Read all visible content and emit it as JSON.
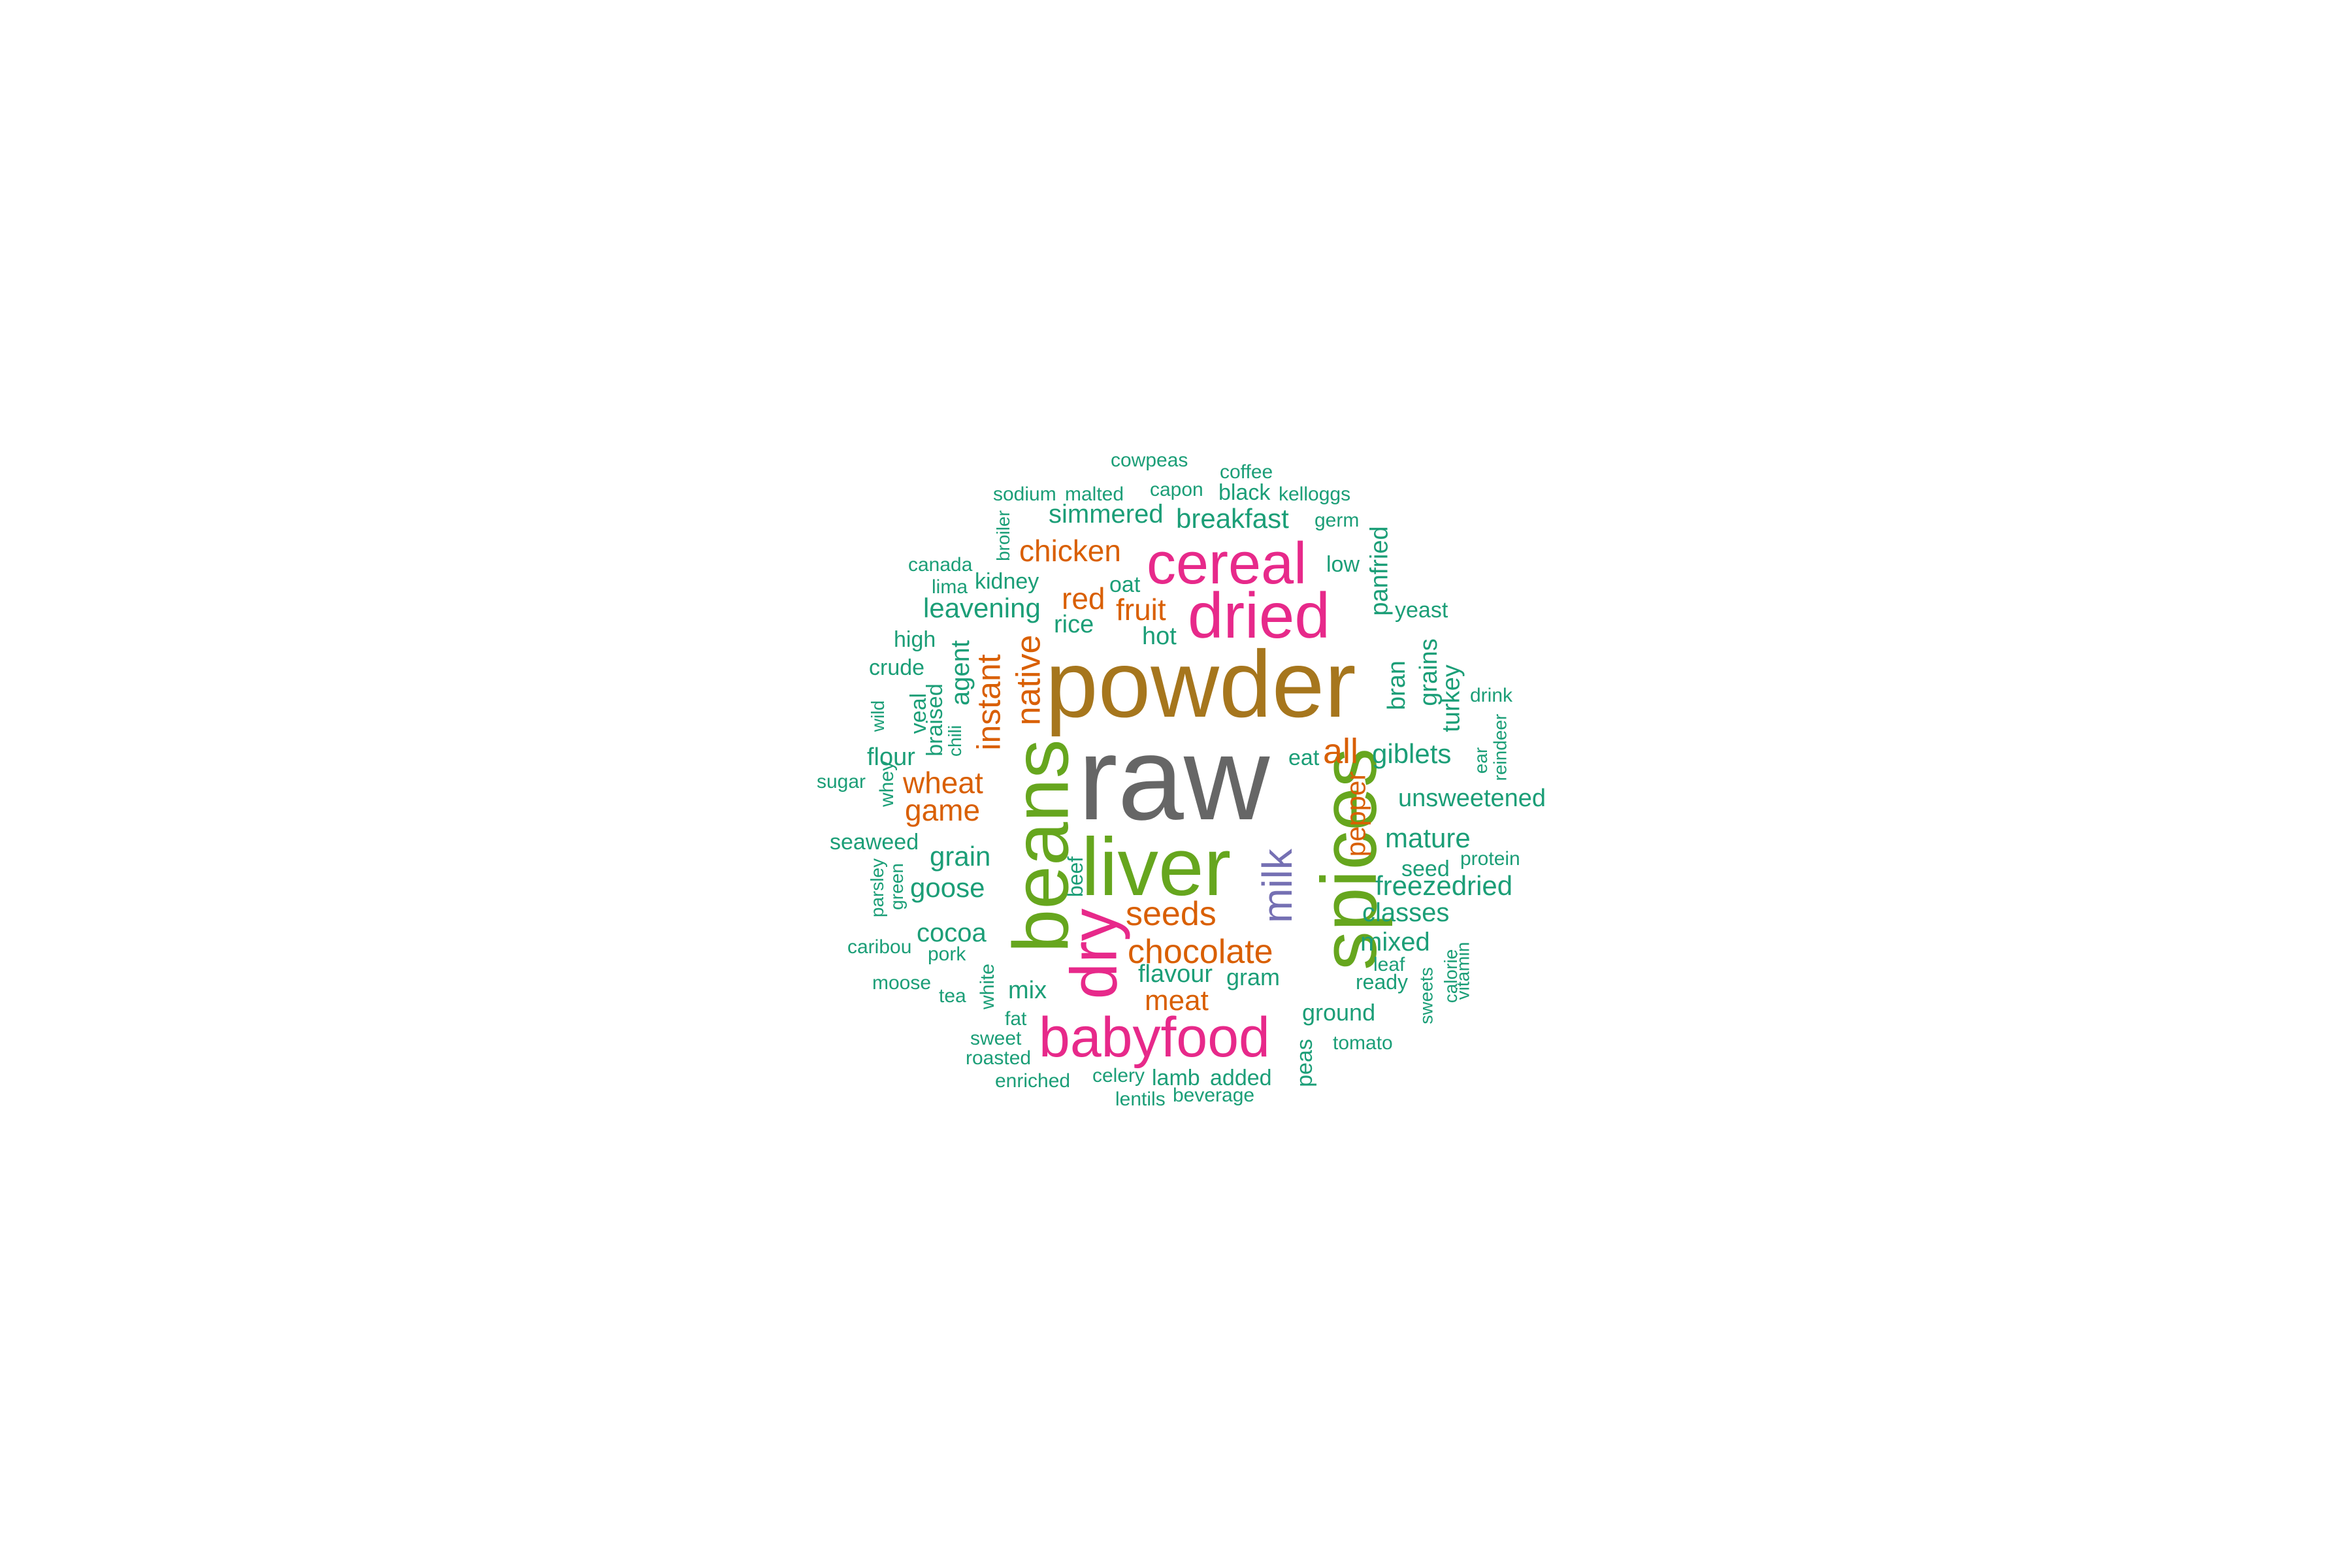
{
  "palette": {
    "c1": "#1b9e77",
    "c2": "#d95f02",
    "c3": "#7570b3",
    "c4": "#e7298a",
    "c5": "#66a61e",
    "c6": "#a6761d",
    "c7": "#666666"
  },
  "words": {
    "raw": "raw",
    "powder": "powder",
    "liver": "liver",
    "beans": "beans",
    "spices": "spices",
    "cereal": "cereal",
    "dried": "dried",
    "dry": "dry",
    "babyfood": "babyfood",
    "milk": "milk",
    "chicken": "chicken",
    "red": "red",
    "fruit": "fruit",
    "native": "native",
    "instant": "instant",
    "wheat": "wheat",
    "game": "game",
    "seeds": "seeds",
    "chocolate": "chocolate",
    "meat": "meat",
    "all": "all",
    "pepper": "pepper",
    "cowpeas": "cowpeas",
    "coffee": "coffee",
    "sodium": "sodium",
    "malted": "malted",
    "capon": "capon",
    "black": "black",
    "kelloggs": "kelloggs",
    "broiler": "broiler",
    "simmered": "simmered",
    "breakfast": "breakfast",
    "germ": "germ",
    "canada": "canada",
    "kidney": "kidney",
    "oat": "oat",
    "low": "low",
    "lima": "lima",
    "leavening": "leavening",
    "rice": "rice",
    "panfried": "panfried",
    "yeast": "yeast",
    "high": "high",
    "hot": "hot",
    "crude": "crude",
    "agent": "agent",
    "bran": "bran",
    "grains": "grains",
    "turkey": "turkey",
    "drink": "drink",
    "wild": "wild",
    "veal": "veal",
    "braised": "braised",
    "chili": "chili",
    "flour": "flour",
    "eat": "eat",
    "giblets": "giblets",
    "ear": "ear",
    "reindeer": "reindeer",
    "sugar": "sugar",
    "whey": "whey",
    "unsweetened": "unsweetened",
    "seaweed": "seaweed",
    "mature": "mature",
    "grain": "grain",
    "seed": "seed",
    "protein": "protein",
    "parsley": "parsley",
    "green": "green",
    "beef": "beef",
    "freezedried": "freezedried",
    "goose": "goose",
    "classes": "classes",
    "cocoa": "cocoa",
    "mixed": "mixed",
    "caribou": "caribou",
    "pork": "pork",
    "leaf": "leaf",
    "calorie": "calorie",
    "vitamin": "vitamin",
    "flavour": "flavour",
    "gram": "gram",
    "moose": "moose",
    "tea": "tea",
    "white": "white",
    "mix": "mix",
    "ready": "ready",
    "sweets": "sweets",
    "fat": "fat",
    "ground": "ground",
    "sweet": "sweet",
    "tomato": "tomato",
    "roasted": "roasted",
    "peas": "peas",
    "enriched": "enriched",
    "celery": "celery",
    "lamb": "lamb",
    "added": "added",
    "lentils": "lentils",
    "beverage": "beverage"
  }
}
